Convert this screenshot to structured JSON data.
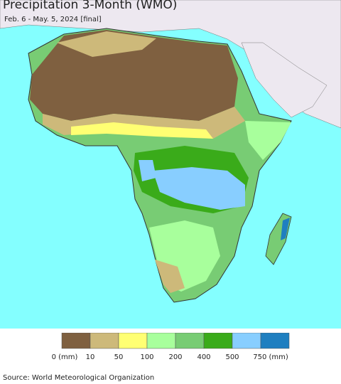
{
  "header": {
    "title": "Precipitation 3-Month (WMO)",
    "subtitle": "Feb. 6 - May. 5, 2024 [final]"
  },
  "legend": {
    "items": [
      {
        "label": "0 (mm)",
        "color": "#7f6040"
      },
      {
        "label": "10",
        "color": "#cdb97a"
      },
      {
        "label": "50",
        "color": "#ffff73"
      },
      {
        "label": "100",
        "color": "#a8ff9c"
      },
      {
        "label": "200",
        "color": "#78cc74"
      },
      {
        "label": "400",
        "color": "#3aab1a"
      },
      {
        "label": "500",
        "color": "#88ceff"
      },
      {
        "label": "750 (mm)",
        "color": "#1f7fc0"
      }
    ]
  },
  "footer": {
    "source": "Source: World Meteorological Organization"
  }
}
